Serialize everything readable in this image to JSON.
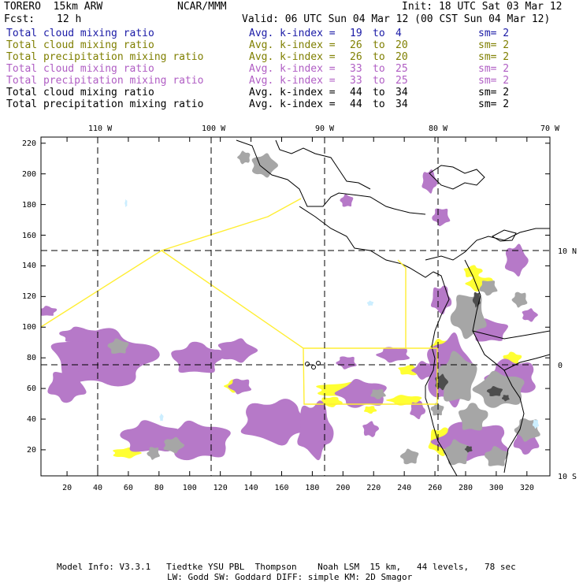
{
  "header": {
    "model": "TORERO  15km ARW",
    "org": "NCAR/MMM",
    "init": "Init: 18 UTC Sat 03 Mar 12",
    "fcst_label": "Fcst:",
    "fcst_value": "12 h",
    "valid": "Valid: 06 UTC Sun 04 Mar 12 (00 CST Sun 04 Mar 12)"
  },
  "legend": {
    "avg_label": "Avg. k-index =",
    "to_label": "to",
    "rows": [
      {
        "field": "Total cloud mixing ratio",
        "from": "19",
        "to": "4",
        "sm": "sm= 2",
        "color": "#1a1aa6"
      },
      {
        "field": "Total cloud mixing ratio",
        "from": "26",
        "to": "20",
        "sm": "sm= 2",
        "color": "#7f7f00"
      },
      {
        "field": "Total precipitation mixing ratio",
        "from": "26",
        "to": "20",
        "sm": "sm= 2",
        "color": "#7f7f00"
      },
      {
        "field": "Total cloud mixing ratio",
        "from": "33",
        "to": "25",
        "sm": "sm= 2",
        "color": "#b05ec4"
      },
      {
        "field": "Total precipitation mixing ratio",
        "from": "33",
        "to": "25",
        "sm": "sm= 2",
        "color": "#b05ec4"
      },
      {
        "field": "Total cloud mixing ratio",
        "from": "44",
        "to": "34",
        "sm": "sm= 2",
        "color": "#000000"
      },
      {
        "field": "Total precipitation mixing ratio",
        "from": "44",
        "to": "34",
        "sm": "sm= 2",
        "color": "#000000"
      }
    ]
  },
  "map": {
    "grid_x_ticks": [
      "20",
      "40",
      "60",
      "80",
      "100",
      "120",
      "140",
      "160",
      "180",
      "200",
      "220",
      "240",
      "260",
      "280",
      "300",
      "320"
    ],
    "grid_y_ticks": [
      "20",
      "40",
      "60",
      "80",
      "100",
      "120",
      "140",
      "160",
      "180",
      "200",
      "220"
    ],
    "lon_labels": [
      "110 W",
      "100 W",
      "90 W",
      "80 W",
      "70 W"
    ],
    "lat_labels": [
      "10 N",
      "0",
      "10 S"
    ],
    "colors": {
      "purple": "#b679c8",
      "yellow": "#ffff33",
      "gray": "#a6a6a6",
      "dark": "#4d4d4d",
      "cyan": "#cceeff",
      "box": "#ffee33"
    }
  },
  "footer": {
    "line1": "Model Info: V3.3.1   Tiedtke YSU PBL  Thompson    Noah LSM  15 km,   44 levels,   78 sec",
    "line2": "LW: Godd SW: Goddard DIFF: simple KM: 2D Smagor"
  }
}
